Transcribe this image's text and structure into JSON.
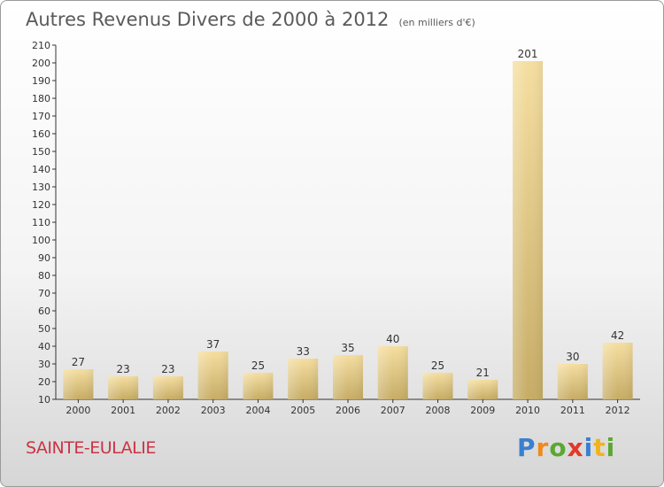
{
  "chart_data": {
    "type": "bar",
    "title": "Autres Revenus Divers de 2000 à 2012",
    "subtitle": "(en milliers d'€)",
    "categories": [
      "2000",
      "2001",
      "2002",
      "2003",
      "2004",
      "2005",
      "2006",
      "2007",
      "2008",
      "2009",
      "2010",
      "2011",
      "2012"
    ],
    "values": [
      27,
      23,
      23,
      37,
      25,
      33,
      35,
      40,
      25,
      21,
      201,
      30,
      42
    ],
    "ylim": [
      10,
      210
    ],
    "yticks": [
      10,
      20,
      30,
      40,
      50,
      60,
      70,
      80,
      90,
      100,
      110,
      120,
      130,
      140,
      150,
      160,
      170,
      180,
      190,
      200,
      210
    ],
    "xlabel": "",
    "ylabel": "",
    "grid": false,
    "bar_color": "#e6cc80"
  },
  "footer": {
    "city": "SAINTE-EULALIE",
    "logo": [
      "P",
      "r",
      "o",
      "x",
      "i",
      "t",
      "i"
    ]
  },
  "logo_colors": [
    "#3a7fd0",
    "#f08a1a",
    "#5aa832",
    "#e03a2a",
    "#3a7fd0",
    "#f0b41a",
    "#5aa832"
  ]
}
